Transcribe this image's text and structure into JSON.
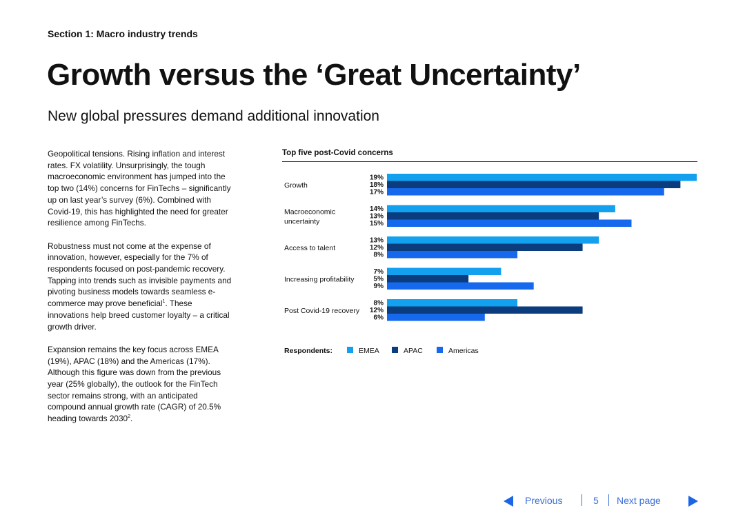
{
  "header": {
    "section": "Section 1: Macro industry trends",
    "title": "Growth versus the ‘Great Uncertainty’",
    "subtitle": "New global pressures demand additional innovation"
  },
  "body": {
    "p1": "Geopolitical tensions. Rising inflation and interest rates. FX volatility. Unsurprisingly, the tough macroeconomic environment has jumped into the top two (14%) concerns for FinTechs – significantly up on last year’s survey (6%). Combined with Covid-19, this has highlighted the need for greater resilience among FinTechs.",
    "p2": "Robustness must not come at the expense of innovation, however, especially for the 7% of respondents focused on post-pandemic recovery. Tapping into trends such as invisible payments and pivoting business models towards seamless e-commerce may prove beneficial",
    "p2_ref": "1",
    "p2_end": ". These innovations help breed customer loyalty – a critical growth driver.",
    "p3": "Expansion remains the key focus across EMEA (19%), APAC (18%) and the Americas (17%). Although this figure was down from the previous year (25% globally), the outlook for the FinTech sector remains strong, with an anticipated compound annual growth rate (CAGR) of 20.5% heading towards 2030",
    "p3_ref": "2",
    "p3_end": "."
  },
  "chart_data": {
    "type": "bar",
    "orientation": "horizontal",
    "title": "Top five post-Covid concerns",
    "categories": [
      [
        "Growth"
      ],
      [
        "Macroeconomic",
        "uncertainty"
      ],
      [
        "Access to talent"
      ],
      [
        "Increasing profitability"
      ],
      [
        "Post Covid-19 recovery"
      ]
    ],
    "series": [
      {
        "name": "EMEA",
        "color": "#12a0ef",
        "values": [
          19,
          14,
          13,
          7,
          8
        ]
      },
      {
        "name": "APAC",
        "color": "#0b3c7d",
        "values": [
          18,
          13,
          12,
          5,
          12
        ]
      },
      {
        "name": "Americas",
        "color": "#1668ec",
        "values": [
          17,
          15,
          8,
          9,
          6
        ]
      }
    ],
    "value_suffix": "%",
    "legend_title": "Respondents:",
    "legend_position": "bottom-left",
    "xlim": [
      0,
      19
    ]
  },
  "footer": {
    "prev_label": "Previous",
    "page_number": "5",
    "next_label": "Next page"
  }
}
